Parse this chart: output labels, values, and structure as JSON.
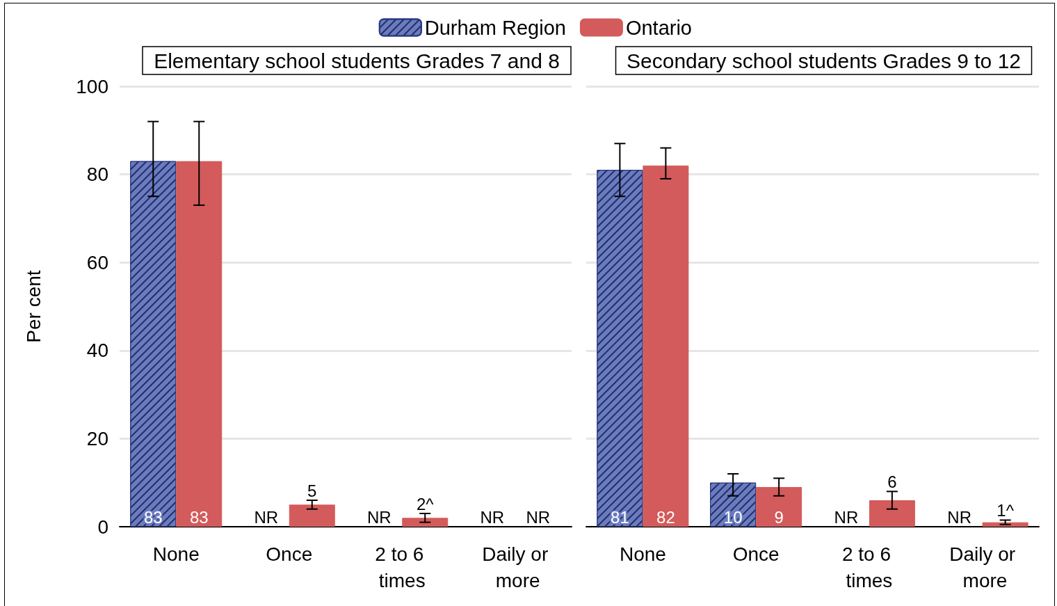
{
  "chart_data": [
    {
      "type": "bar",
      "title": "Elementary school students Grades 7 and 8",
      "ylabel": "Per cent",
      "categories": [
        "None",
        "Once",
        "2 to 6 times",
        "Daily or more"
      ],
      "ylim": [
        0,
        100
      ],
      "yticks": [
        0,
        20,
        40,
        60,
        80,
        100
      ],
      "grid": "y",
      "legend": "top",
      "series": [
        {
          "name": "Durham Region",
          "color": "#6b7cbe",
          "values": [
            83,
            null,
            null,
            null
          ],
          "errors": [
            [
              75,
              92
            ],
            null,
            null,
            null
          ],
          "value_labels": [
            "83",
            "NR",
            "NR",
            "NR"
          ]
        },
        {
          "name": "Ontario",
          "color": "#d35b5b",
          "values": [
            83,
            5,
            2,
            null
          ],
          "errors": [
            [
              73,
              92
            ],
            [
              4,
              6
            ],
            [
              1,
              3
            ],
            null
          ],
          "value_labels": [
            "83",
            "5",
            "2^",
            "NR"
          ]
        }
      ]
    },
    {
      "type": "bar",
      "title": "Secondary school students Grades 9 to 12",
      "categories": [
        "None",
        "Once",
        "2 to 6 times",
        "Daily or more"
      ],
      "ylim": [
        0,
        100
      ],
      "yticks": [
        0,
        20,
        40,
        60,
        80,
        100
      ],
      "grid": "y",
      "tick_labels": "x",
      "series": [
        {
          "color": "#6b7cbe",
          "values": [
            81,
            10,
            null,
            null
          ],
          "errors": [
            [
              75,
              87
            ],
            [
              7,
              12
            ],
            null,
            null
          ],
          "value_labels": [
            "81",
            "10",
            "NR",
            "NR"
          ]
        },
        {
          "color": "#d35b5b",
          "values": [
            82,
            9,
            6,
            1
          ],
          "errors": [
            [
              79,
              86
            ],
            [
              7,
              11
            ],
            [
              4,
              8
            ],
            [
              0.5,
              1.5
            ]
          ],
          "value_labels": [
            "82",
            "9",
            "6",
            "1^"
          ]
        }
      ]
    }
  ]
}
